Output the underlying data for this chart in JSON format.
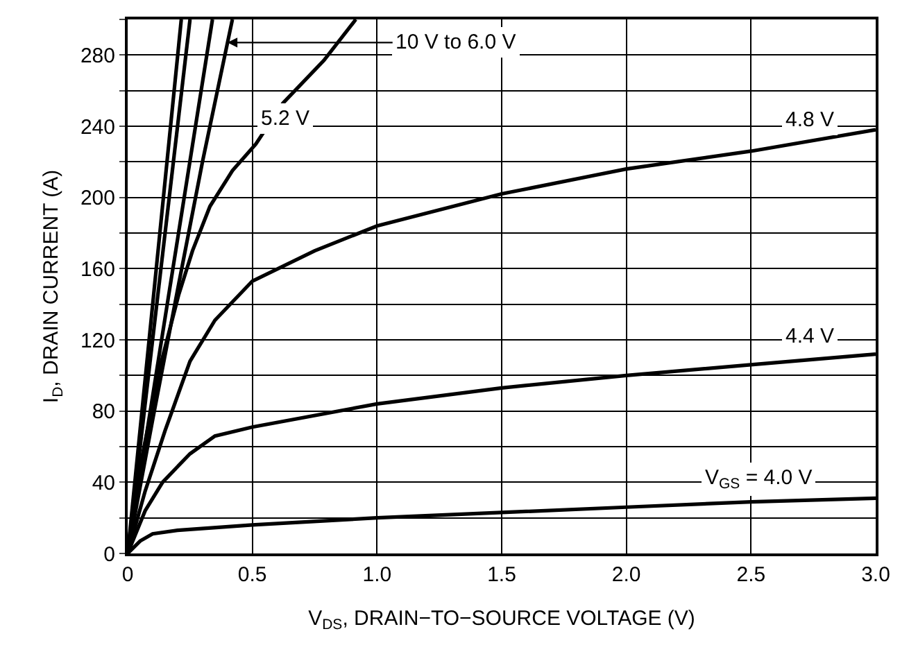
{
  "chart_data": {
    "type": "line",
    "xlabel": "V$_{DS}$, DRAIN−TO−SOURCE VOLTAGE (V)",
    "ylabel": "I$_{D}$, DRAIN CURRENT (A)",
    "xlim": [
      0,
      3
    ],
    "ylim": [
      0,
      300
    ],
    "xticks": [
      0,
      {
        "value": 0.5,
        "label": "0.5"
      },
      {
        "value": 1,
        "label": "1.0"
      },
      {
        "value": 1.5,
        "label": "1.5"
      },
      {
        "value": 2,
        "label": "2.0"
      },
      {
        "value": 2.5,
        "label": "2.5"
      },
      {
        "value": 3,
        "label": "3.0"
      }
    ],
    "yticks": [
      0,
      {
        "value": 20,
        "label": null
      },
      40,
      {
        "value": 60,
        "label": null
      },
      80,
      {
        "value": 100,
        "label": null
      },
      120,
      {
        "value": 140,
        "label": null
      },
      160,
      {
        "value": 180,
        "label": null
      },
      200,
      {
        "value": 220,
        "label": null
      },
      240,
      {
        "value": 260,
        "label": null
      },
      280,
      {
        "value": 300,
        "label": null
      }
    ],
    "grid": true,
    "marker": "none",
    "line_style": "solid",
    "series": [
      {
        "color": "#000000",
        "x": [
          0,
          0.215
        ],
        "values": [
          0,
          300
        ]
      },
      {
        "color": "#000000",
        "x": [
          0,
          0.25
        ],
        "values": [
          0,
          300
        ]
      },
      {
        "color": "#000000",
        "x": [
          0,
          0.34
        ],
        "values": [
          0,
          300
        ]
      },
      {
        "color": "#000000",
        "x": [
          0,
          0.1,
          0.2,
          0.3,
          0.42
        ],
        "values": [
          0,
          75,
          148,
          220,
          300
        ]
      },
      {
        "color": "#000000",
        "x": [
          0,
          0.056,
          0.13,
          0.204,
          0.26,
          0.33,
          0.42,
          0.514,
          0.623,
          0.787,
          0.915
        ],
        "values": [
          0,
          53,
          105,
          145,
          170,
          195,
          215,
          230,
          253,
          277,
          300
        ]
      },
      {
        "color": "#000000",
        "x": [
          0,
          0.07,
          0.15,
          0.25,
          0.35,
          0.5,
          0.75,
          1,
          1.5,
          2,
          2.5,
          3
        ],
        "values": [
          0,
          35,
          69,
          108,
          131,
          153,
          170,
          184,
          202,
          216,
          226,
          238
        ]
      },
      {
        "color": "#000000",
        "x": [
          0,
          0.07,
          0.14,
          0.25,
          0.35,
          0.5,
          1,
          1.5,
          2,
          2.5,
          3
        ],
        "values": [
          0,
          24,
          40,
          56,
          66,
          71,
          84,
          93,
          100,
          106,
          112
        ]
      },
      {
        "color": "#000000",
        "x": [
          0,
          0.05,
          0.1,
          0.2,
          0.5,
          1,
          1.5,
          2,
          2.5,
          3
        ],
        "values": [
          0,
          7,
          11,
          13,
          16,
          20,
          23,
          26,
          29,
          31
        ]
      }
    ],
    "annotations": [
      {
        "text": "10 V to 6.0 V",
        "x": 0.4,
        "y": 287
      },
      {
        "text": "5.2 V",
        "x": 0.52,
        "y": 231
      },
      {
        "text": "4.8 V",
        "x": 2.62,
        "y": 230
      },
      {
        "text": "4.4 V",
        "x": 2.62,
        "y": 108
      },
      {
        "text": "V$_{GS}$ = 4.0 V",
        "x": 2.3,
        "y": 27
      }
    ]
  }
}
